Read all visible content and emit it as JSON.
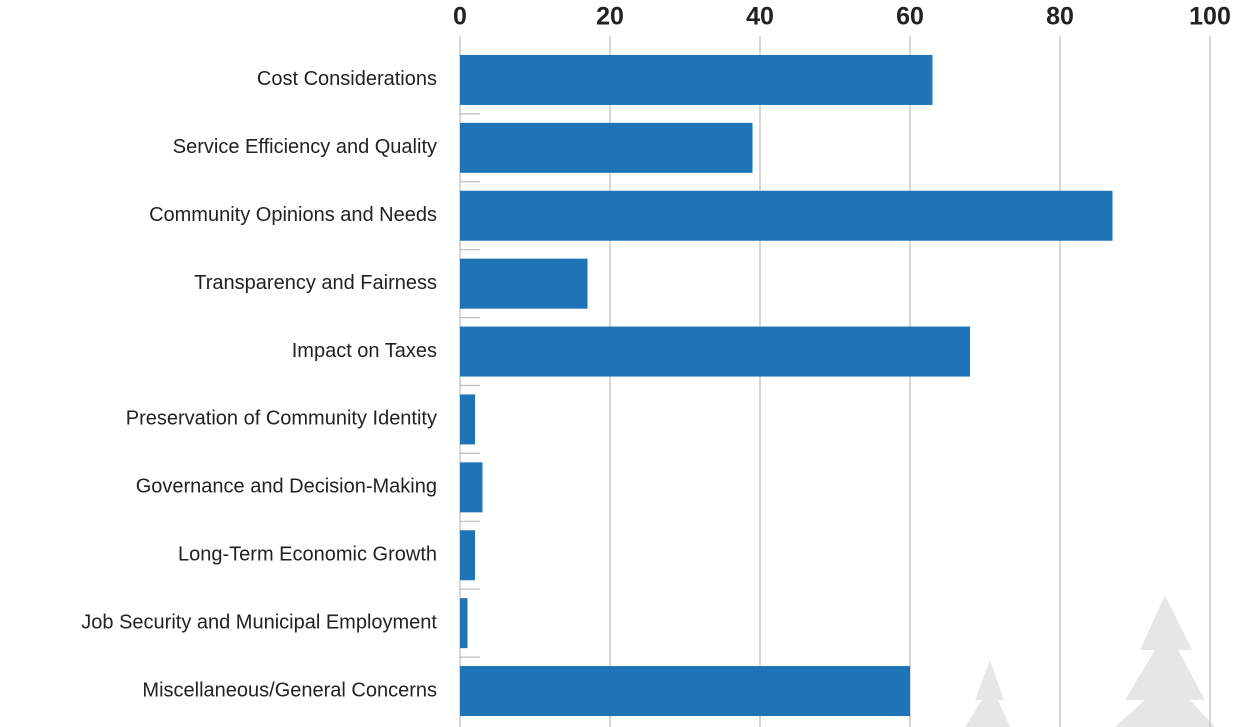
{
  "chart_data": {
    "type": "bar",
    "orientation": "horizontal",
    "categories": [
      "Cost Considerations",
      "Service Efficiency and Quality",
      "Community Opinions and Needs",
      "Transparency and Fairness",
      "Impact on Taxes",
      "Preservation of Community Identity",
      "Governance and Decision-Making",
      "Long-Term Economic Growth",
      "Job Security and Municipal Employment",
      "Miscellaneous/General Concerns"
    ],
    "values": [
      63,
      39,
      87,
      17,
      68,
      2,
      3,
      2,
      1,
      60
    ],
    "color": "#1f73b7",
    "xlim": [
      0,
      100
    ],
    "xticks": [
      0,
      20,
      40,
      60,
      80,
      100
    ],
    "grid": true
  }
}
